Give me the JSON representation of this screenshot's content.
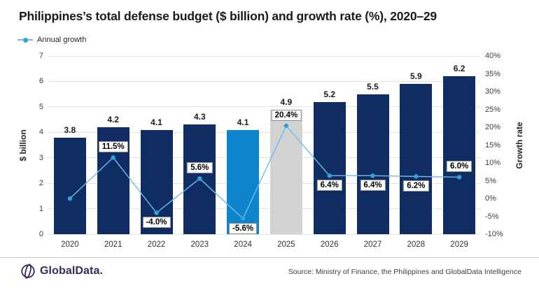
{
  "title": "Philippines’s total defense budget ($ billion) and growth rate (%), 2020–29",
  "legend": {
    "label": "Annual growth"
  },
  "footer": {
    "brand": "GlobalData.",
    "source": "Source: Ministry of Finance, the Philippines and GlobalData Intelligence"
  },
  "colors": {
    "navy": "#0f2d62",
    "accent": "#0e84cc",
    "gray": "#d2d2d2",
    "line": "#6fbce8",
    "marker": "#31a2dc",
    "grid": "#e3e3e3",
    "brand_purple": "#3a2a5d"
  },
  "chart_data": {
    "type": "bar",
    "title": "Philippines’s total defense budget ($ billion) and growth rate (%), 2020–29",
    "categories": [
      "2020",
      "2021",
      "2022",
      "2023",
      "2024",
      "2025",
      "2026",
      "2027",
      "2028",
      "2029"
    ],
    "series": [
      {
        "name": "Total defense budget ($ billion)",
        "type": "bar",
        "values": [
          3.8,
          4.2,
          4.1,
          4.3,
          4.1,
          4.9,
          5.2,
          5.5,
          5.9,
          6.2
        ],
        "bar_color_keys": [
          "navy",
          "navy",
          "navy",
          "navy",
          "accent",
          "gray",
          "navy",
          "navy",
          "navy",
          "navy"
        ]
      },
      {
        "name": "Annual growth",
        "type": "line",
        "values": [
          0.0,
          11.5,
          -4.0,
          5.6,
          -5.6,
          20.4,
          6.4,
          6.4,
          6.2,
          6.0
        ],
        "labels": [
          "",
          "11.5%",
          "-4.0%",
          "5.6%",
          "-5.6%",
          "20.4%",
          "6.4%",
          "6.4%",
          "6.2%",
          "6.0%"
        ],
        "label_positions": [
          "none",
          "above",
          "below",
          "above",
          "below",
          "above",
          "below",
          "below",
          "below",
          "above"
        ]
      }
    ],
    "left_axis": {
      "title": "$ billion",
      "min": 0,
      "max": 7,
      "step": 1
    },
    "right_axis": {
      "title": "Growth rate",
      "min": -10,
      "max": 40,
      "step": 5,
      "suffix": "%"
    },
    "grid": true,
    "legend_position": "top-left"
  }
}
